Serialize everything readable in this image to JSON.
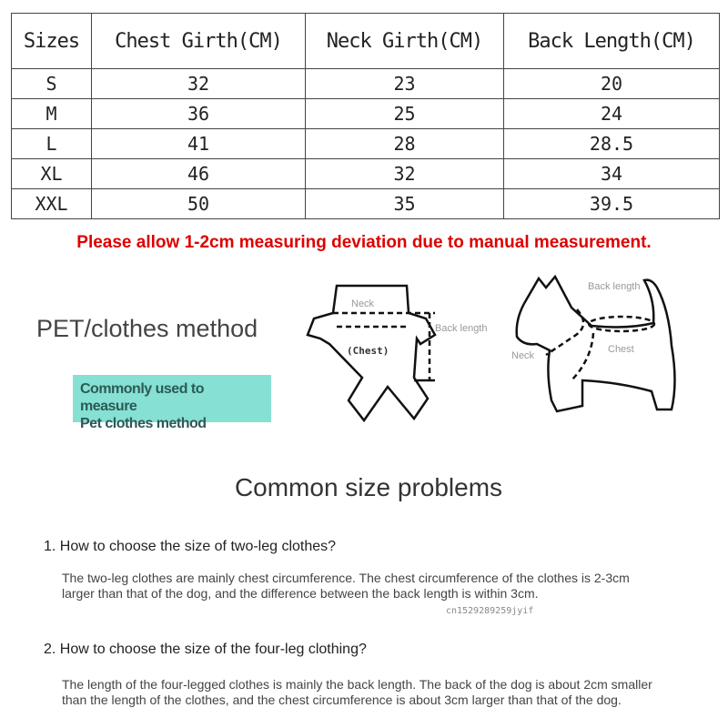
{
  "size_table": {
    "headers": [
      "Sizes",
      "Chest Girth(CM)",
      "Neck Girth(CM)",
      "Back Length(CM)"
    ],
    "rows": [
      [
        "S",
        "32",
        "23",
        "20"
      ],
      [
        "M",
        "36",
        "25",
        "24"
      ],
      [
        "L",
        "41",
        "28",
        "28.5"
      ],
      [
        "XL",
        "46",
        "32",
        "34"
      ],
      [
        "XXL",
        "50",
        "35",
        "39.5"
      ]
    ]
  },
  "deviation_note": "Please allow 1-2cm measuring deviation due to manual measurement.",
  "deviation_note_color": "#dd0000",
  "method": {
    "title": "PET/clothes method",
    "box_line1": "Commonly used to measure",
    "box_line2": "Pet clothes method",
    "box_color": "#86e0d4",
    "clothes_labels": {
      "neck": "Neck",
      "chest": "(Chest)",
      "back": "Back length"
    },
    "dog_labels": {
      "back": "Back length",
      "neck": "Neck",
      "chest": "Chest"
    }
  },
  "faq": {
    "title": "Common size problems",
    "items": [
      {
        "question": "1. How to choose the size of two-leg clothes?",
        "answer": "The two-leg clothes are mainly chest circumference. The chest circumference of the clothes is 2-3cm larger than that of the dog, and the difference between the back length is within 3cm."
      },
      {
        "question": "2. How to choose the size of the four-leg clothing?",
        "answer": "The length of the four-legged clothes is mainly the back length. The back of the dog is about 2cm smaller than the length of the clothes, and the chest circumference is about 3cm larger than that of the dog."
      }
    ],
    "watermark": "cn1529289259jyif"
  }
}
